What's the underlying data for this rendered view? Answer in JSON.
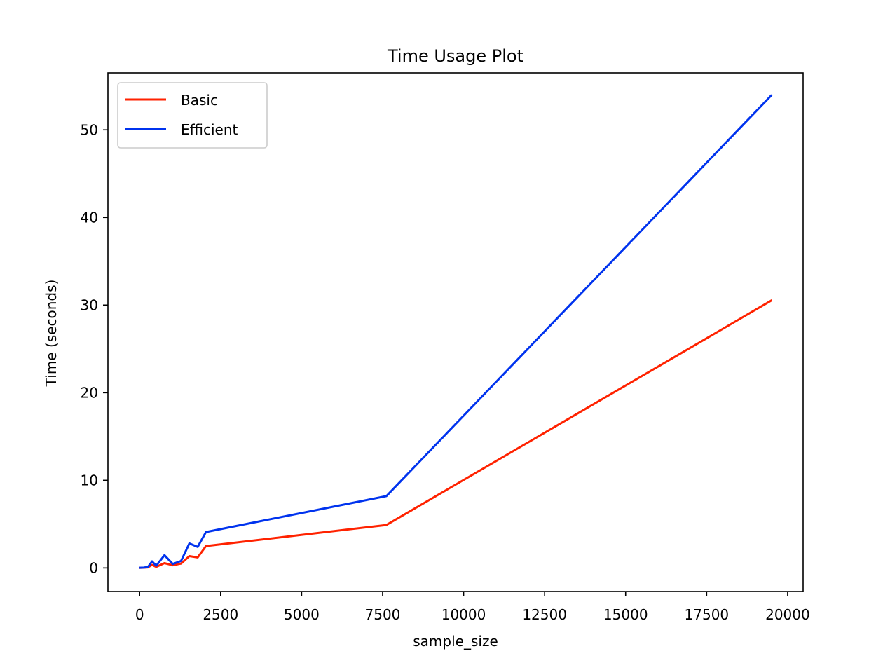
{
  "chart_data": {
    "type": "line",
    "title": "Time Usage Plot",
    "xlabel": "sample_size",
    "ylabel": "Time (seconds)",
    "xlim": [
      -977.5,
      20477.5
    ],
    "ylim": [
      -2.69,
      56.5
    ],
    "xticks": [
      0,
      2500,
      5000,
      7500,
      10000,
      12500,
      15000,
      17500,
      20000
    ],
    "xtick_labels": [
      "0",
      "2500",
      "5000",
      "7500",
      "10000",
      "12500",
      "15000",
      "17500",
      "20000"
    ],
    "yticks": [
      0,
      10,
      20,
      30,
      40,
      50
    ],
    "ytick_labels": [
      "0",
      "10",
      "20",
      "30",
      "40",
      "50"
    ],
    "grid": false,
    "legend_position": "upper-left",
    "series": [
      {
        "name": "Basic",
        "color": "#ff2200",
        "x": [
          16,
          64,
          128,
          256,
          384,
          512,
          768,
          1024,
          1280,
          1536,
          1792,
          2048,
          7616,
          19488
        ],
        "y": [
          0.01,
          0.02,
          0.03,
          0.06,
          0.35,
          0.12,
          0.55,
          0.3,
          0.5,
          1.35,
          1.2,
          2.5,
          4.9,
          30.5
        ]
      },
      {
        "name": "Efficient",
        "color": "#0033ee",
        "x": [
          16,
          64,
          128,
          256,
          384,
          512,
          768,
          1024,
          1280,
          1536,
          1792,
          2048,
          7616,
          19488
        ],
        "y": [
          0.02,
          0.03,
          0.04,
          0.1,
          0.75,
          0.25,
          1.45,
          0.45,
          0.8,
          2.8,
          2.4,
          4.1,
          8.2,
          53.9
        ]
      }
    ]
  }
}
